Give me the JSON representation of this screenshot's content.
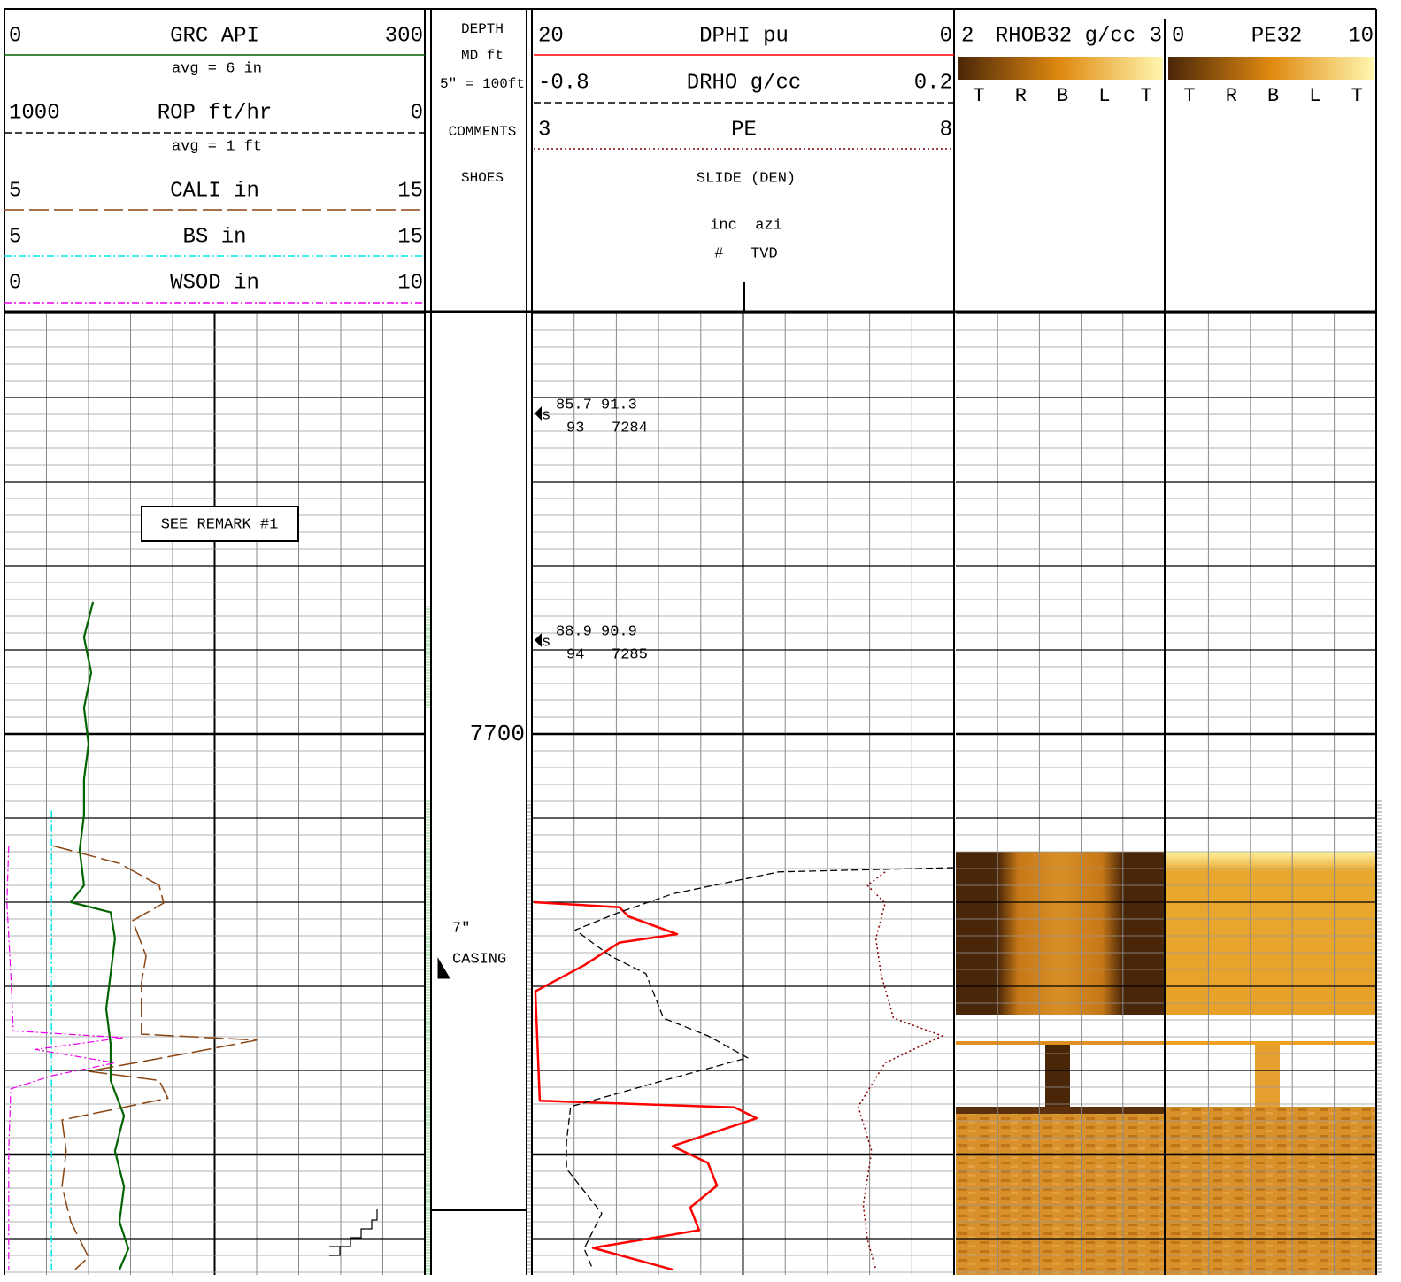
{
  "track1": {
    "curves": [
      {
        "left": 0,
        "label": "GRC API",
        "right": 300,
        "color": "#006400",
        "style": "solid",
        "width": 2.2,
        "depths": [
          7684.3,
          7688.5,
          7692.7,
          7696.9,
          7701.2,
          7705.4,
          7709.6,
          7713.8,
          7718,
          7720,
          7721.2,
          7724.3,
          7728.5,
          7732.7,
          7736.9,
          7741.2,
          7745.4,
          7749.6,
          7753.8,
          7758,
          7761.2,
          7763.7
        ],
        "values": [
          63.2,
          56.8,
          61.9,
          56.8,
          60,
          56.8,
          56.8,
          53.7,
          56.8,
          47.4,
          75.8,
          78.9,
          75.8,
          72.6,
          75.8,
          75.8,
          85.3,
          78.9,
          85.3,
          82.1,
          88.4,
          82.1
        ]
      },
      {
        "left": 1000,
        "label": "ROP ft/hr",
        "right": 0,
        "color": "#000000",
        "style": "dashed",
        "width": 1.2
      },
      {
        "left": 5,
        "label": "CALI in",
        "right": 15,
        "color": "#8b4513",
        "style": "longdash",
        "width": 1.5,
        "depths": [
          7713.3,
          7715.4,
          7718,
          7720.1,
          7722.2,
          7726.4,
          7729.6,
          7735.7,
          7736.4,
          7738,
          7740.1,
          7741.2,
          7743.3,
          7745.9,
          7749.6,
          7753.8,
          7758,
          7762.2,
          7763.7
        ],
        "values": [
          6.16,
          7.74,
          8.68,
          8.79,
          8.05,
          8.37,
          8.26,
          8.26,
          11,
          9.32,
          7,
          8.68,
          8.89,
          6.37,
          6.47,
          6.37,
          6.58,
          7,
          6.68
        ]
      },
      {
        "left": 5,
        "label": "BS in",
        "right": 15,
        "color": "#00e5e5",
        "style": "dashdot",
        "width": 1.5,
        "depths": [
          7709.1,
          7763.7
        ],
        "values": [
          6.12,
          6.12
        ]
      },
      {
        "left": 0,
        "label": "WSOD in",
        "right": 10,
        "color": "#ee00ee",
        "style": "dashdot",
        "width": 1.2,
        "depths": [
          7713.3,
          7720.1,
          7728.5,
          7735.3,
          7736.1,
          7737.5,
          7739.1,
          7740.6,
          7742.2,
          7749.6,
          7763.7
        ],
        "values": [
          0.1,
          0.06,
          0.15,
          0.21,
          2.84,
          0.74,
          2.63,
          1.16,
          0.15,
          0.1,
          0.1
        ]
      }
    ],
    "notes": [
      "avg = 6 in",
      "avg = 1 ft"
    ],
    "remark": "SEE REMARK #1"
  },
  "depth_track": {
    "header": [
      "DEPTH",
      "MD ft",
      "5\" = 100ft",
      "COMMENTS",
      "SHOES"
    ],
    "depth_label": 7700,
    "casing": [
      "7\"",
      "CASING"
    ]
  },
  "track2": {
    "curves": [
      {
        "left": 20,
        "label": "DPHI pu",
        "right": 0,
        "color": "#ff0000",
        "style": "solid",
        "width": 2.5,
        "depths": [
          7720,
          7720.6,
          7721.7,
          7723.8,
          7724.8,
          7727.5,
          7730.6,
          7743.6,
          7744.4,
          7745.7,
          7749,
          7751,
          7753.7,
          7756.3,
          7759,
          7761.1,
          7763.7
        ],
        "values": [
          20,
          15.92,
          15.49,
          13.18,
          15.92,
          17.6,
          19.92,
          19.71,
          10.44,
          9.39,
          13.39,
          11.71,
          11.28,
          12.55,
          12.13,
          17.18,
          13.39
        ]
      },
      {
        "left": -0.8,
        "label": "DRHO g/cc",
        "right": 0.2,
        "color": "#000000",
        "style": "dashed",
        "width": 1.3,
        "depths": [
          7715.9,
          7716.4,
          7719,
          7721.2,
          7723.3,
          7726.4,
          7728.5,
          7733.8,
          7735.9,
          7738.5,
          7741.2,
          7744.3,
          7748.5,
          7751.7,
          7757,
          7761.2,
          7763.7
        ],
        "values": [
          0.2,
          -0.217,
          -0.469,
          -0.596,
          -0.701,
          -0.617,
          -0.533,
          -0.491,
          -0.385,
          -0.291,
          -0.491,
          -0.712,
          -0.722,
          -0.722,
          -0.638,
          -0.68,
          -0.659
        ]
      },
      {
        "left": 3,
        "label": "PE",
        "right": 8,
        "color": "#800000",
        "style": "dotted",
        "width": 1.5,
        "depths": [
          7716.4,
          7718,
          7720.1,
          7724.3,
          7728.5,
          7733.8,
          7735.9,
          7739.1,
          7744.3,
          7749.6,
          7756,
          7760.1,
          7763.7
        ],
        "values": [
          7.18,
          6.97,
          7.18,
          7.07,
          7.13,
          7.28,
          7.86,
          7.18,
          6.86,
          7.02,
          6.92,
          6.97,
          7.07
        ]
      }
    ],
    "header": [
      "SLIDE (DEN)",
      "inc  azi",
      "#   TVD"
    ],
    "surveys": [
      {
        "top": "85.7 91.3",
        "bottom": "93   7284",
        "mark": "s"
      },
      {
        "top": "88.9 90.9",
        "bottom": "94   7285",
        "mark": "s"
      }
    ]
  },
  "image_tracks": [
    {
      "left": 2,
      "label": "RHOB32 g/cc",
      "right": 3,
      "letters": [
        "T",
        "R",
        "B",
        "L",
        "T"
      ]
    },
    {
      "left": 0,
      "label": "PE32",
      "right": 10,
      "letters": [
        "T",
        "R",
        "B",
        "L",
        "T"
      ]
    }
  ]
}
